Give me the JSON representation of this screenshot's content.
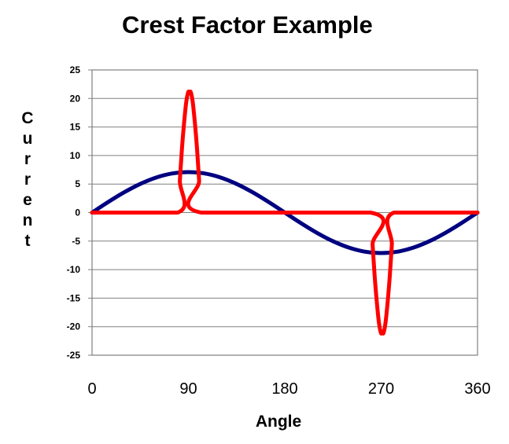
{
  "chart_data": {
    "type": "line",
    "title": "Crest Factor Example",
    "xlabel": "Angle",
    "ylabel": "Current",
    "xlim": [
      0,
      360
    ],
    "ylim": [
      -25,
      25
    ],
    "x_ticks": [
      0,
      90,
      180,
      270,
      360
    ],
    "y_ticks": [
      25,
      20,
      15,
      10,
      5,
      0,
      -5,
      -10,
      -15,
      -20,
      -25
    ],
    "grid": true,
    "legend": "none",
    "series": [
      {
        "color": "#000080",
        "x": [
          0,
          15,
          30,
          45,
          60,
          75,
          90,
          105,
          120,
          135,
          150,
          165,
          180,
          195,
          210,
          225,
          240,
          255,
          270,
          285,
          300,
          315,
          330,
          345,
          360
        ],
        "y": [
          0,
          1.84,
          3.55,
          5.02,
          6.15,
          6.86,
          7.1,
          6.86,
          6.15,
          5.02,
          3.55,
          1.84,
          0,
          -1.84,
          -3.55,
          -5.02,
          -6.15,
          -6.86,
          -7.1,
          -6.86,
          -6.15,
          -5.02,
          -3.55,
          -1.84,
          0
        ]
      },
      {
        "color": "#ff0000",
        "x": [
          0,
          80,
          82,
          84,
          86,
          88,
          90,
          92,
          94,
          96,
          98,
          100,
          102,
          260,
          262,
          264,
          266,
          268,
          270,
          272,
          274,
          276,
          278,
          280,
          282,
          360
        ],
        "y": [
          0,
          0,
          5.6,
          11.3,
          15.8,
          19.4,
          21.2,
          21.2,
          19.4,
          15.8,
          11.3,
          5.6,
          0,
          0,
          -5.6,
          -11.3,
          -15.8,
          -19.4,
          -21.2,
          -21.2,
          -19.4,
          -15.8,
          -11.3,
          -5.6,
          0,
          0
        ]
      }
    ]
  }
}
